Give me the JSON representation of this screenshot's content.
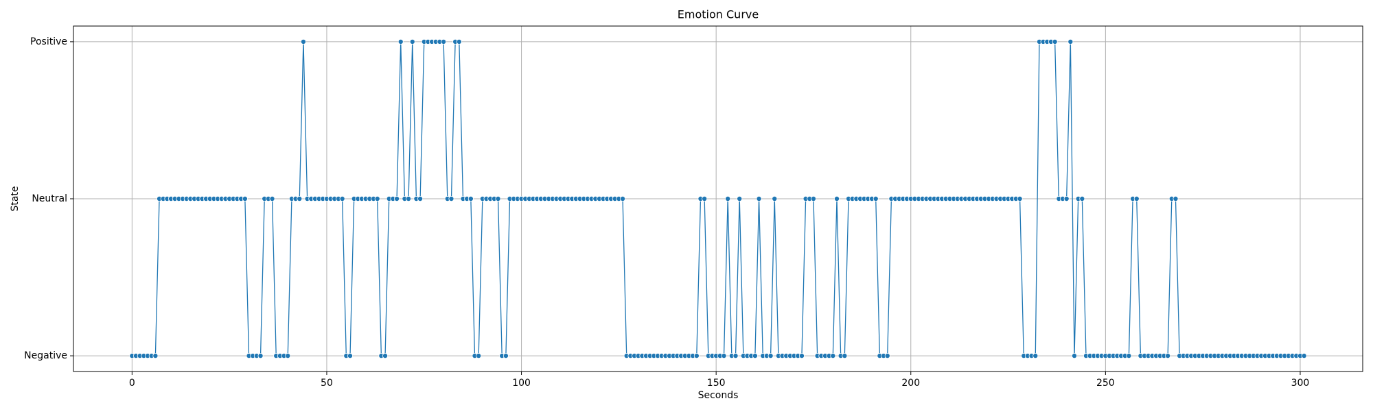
{
  "chart_data": {
    "type": "line",
    "title": "Emotion Curve",
    "xlabel": "Seconds",
    "ylabel": "State",
    "color": "#1f77b4",
    "grid": true,
    "marker": "circle",
    "xlim": [
      -15.05,
      316.05
    ],
    "xticks": [
      0,
      50,
      100,
      150,
      200,
      250,
      300
    ],
    "ylim": [
      -0.1,
      2.1
    ],
    "yticks": [
      {
        "value": 0,
        "label": "Negative"
      },
      {
        "value": 1,
        "label": "Neutral"
      },
      {
        "value": 2,
        "label": "Positive"
      }
    ],
    "x": [
      0,
      1,
      2,
      3,
      4,
      5,
      6,
      7,
      8,
      9,
      10,
      11,
      12,
      13,
      14,
      15,
      16,
      17,
      18,
      19,
      20,
      21,
      22,
      23,
      24,
      25,
      26,
      27,
      28,
      29,
      30,
      31,
      32,
      33,
      34,
      35,
      36,
      37,
      38,
      39,
      40,
      41,
      42,
      43,
      44,
      45,
      46,
      47,
      48,
      49,
      50,
      51,
      52,
      53,
      54,
      55,
      56,
      57,
      58,
      59,
      60,
      61,
      62,
      63,
      64,
      65,
      66,
      67,
      68,
      69,
      70,
      71,
      72,
      73,
      74,
      75,
      76,
      77,
      78,
      79,
      80,
      81,
      82,
      83,
      84,
      85,
      86,
      87,
      88,
      89,
      90,
      91,
      92,
      93,
      94,
      95,
      96,
      97,
      98,
      99,
      100,
      101,
      102,
      103,
      104,
      105,
      106,
      107,
      108,
      109,
      110,
      111,
      112,
      113,
      114,
      115,
      116,
      117,
      118,
      119,
      120,
      121,
      122,
      123,
      124,
      125,
      126,
      127,
      128,
      129,
      130,
      131,
      132,
      133,
      134,
      135,
      136,
      137,
      138,
      139,
      140,
      141,
      142,
      143,
      144,
      145,
      146,
      147,
      148,
      149,
      150,
      151,
      152,
      153,
      154,
      155,
      156,
      157,
      158,
      159,
      160,
      161,
      162,
      163,
      164,
      165,
      166,
      167,
      168,
      169,
      170,
      171,
      172,
      173,
      174,
      175,
      176,
      177,
      178,
      179,
      180,
      181,
      182,
      183,
      184,
      185,
      186,
      187,
      188,
      189,
      190,
      191,
      192,
      193,
      194,
      195,
      196,
      197,
      198,
      199,
      200,
      201,
      202,
      203,
      204,
      205,
      206,
      207,
      208,
      209,
      210,
      211,
      212,
      213,
      214,
      215,
      216,
      217,
      218,
      219,
      220,
      221,
      222,
      223,
      224,
      225,
      226,
      227,
      228,
      229,
      230,
      231,
      232,
      233,
      234,
      235,
      236,
      237,
      238,
      239,
      240,
      241,
      242,
      243,
      244,
      245,
      246,
      247,
      248,
      249,
      250,
      251,
      252,
      253,
      254,
      255,
      256,
      257,
      258,
      259,
      260,
      261,
      262,
      263,
      264,
      265,
      266,
      267,
      268,
      269,
      270,
      271,
      272,
      273,
      274,
      275,
      276,
      277,
      278,
      279,
      280,
      281,
      282,
      283,
      284,
      285,
      286,
      287,
      288,
      289,
      290,
      291,
      292,
      293,
      294,
      295,
      296,
      297,
      298,
      299,
      300,
      301
    ],
    "values": [
      0,
      0,
      0,
      0,
      0,
      0,
      0,
      1,
      1,
      1,
      1,
      1,
      1,
      1,
      1,
      1,
      1,
      1,
      1,
      1,
      1,
      1,
      1,
      1,
      1,
      1,
      1,
      1,
      1,
      1,
      0,
      0,
      0,
      0,
      1,
      1,
      1,
      0,
      0,
      0,
      0,
      1,
      1,
      1,
      2,
      1,
      1,
      1,
      1,
      1,
      1,
      1,
      1,
      1,
      1,
      0,
      0,
      1,
      1,
      1,
      1,
      1,
      1,
      1,
      0,
      0,
      1,
      1,
      1,
      2,
      1,
      1,
      2,
      1,
      1,
      2,
      2,
      2,
      2,
      2,
      2,
      1,
      1,
      2,
      2,
      1,
      1,
      1,
      0,
      0,
      1,
      1,
      1,
      1,
      1,
      0,
      0,
      1,
      1,
      1,
      1,
      1,
      1,
      1,
      1,
      1,
      1,
      1,
      1,
      1,
      1,
      1,
      1,
      1,
      1,
      1,
      1,
      1,
      1,
      1,
      1,
      1,
      1,
      1,
      1,
      1,
      1,
      0,
      0,
      0,
      0,
      0,
      0,
      0,
      0,
      0,
      0,
      0,
      0,
      0,
      0,
      0,
      0,
      0,
      0,
      0,
      1,
      1,
      0,
      0,
      0,
      0,
      0,
      1,
      0,
      0,
      1,
      0,
      0,
      0,
      0,
      1,
      0,
      0,
      0,
      1,
      0,
      0,
      0,
      0,
      0,
      0,
      0,
      1,
      1,
      1,
      0,
      0,
      0,
      0,
      0,
      1,
      0,
      0,
      1,
      1,
      1,
      1,
      1,
      1,
      1,
      1,
      0,
      0,
      0,
      1,
      1,
      1,
      1,
      1,
      1,
      1,
      1,
      1,
      1,
      1,
      1,
      1,
      1,
      1,
      1,
      1,
      1,
      1,
      1,
      1,
      1,
      1,
      1,
      1,
      1,
      1,
      1,
      1,
      1,
      1,
      1,
      1,
      1,
      0,
      0,
      0,
      0,
      2,
      2,
      2,
      2,
      2,
      1,
      1,
      1,
      2,
      0,
      1,
      1,
      0,
      0,
      0,
      0,
      0,
      0,
      0,
      0,
      0,
      0,
      0,
      0,
      1,
      1,
      0,
      0,
      0,
      0,
      0,
      0,
      0,
      0,
      1,
      1,
      0,
      0,
      0,
      0,
      0,
      0,
      0,
      0,
      0,
      0,
      0,
      0,
      0,
      0,
      0,
      0,
      0,
      0,
      0,
      0,
      0,
      0,
      0,
      0,
      0,
      0,
      0,
      0,
      0,
      0,
      0,
      0,
      0
    ]
  }
}
